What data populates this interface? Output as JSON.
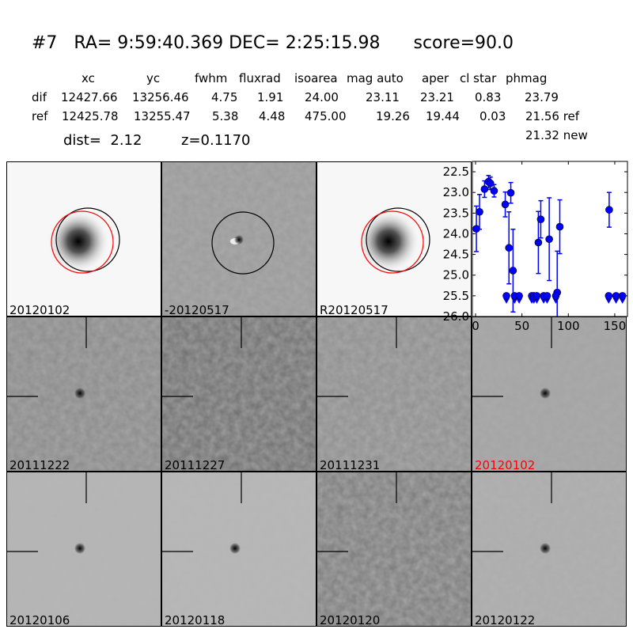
{
  "title": {
    "id": "#7",
    "ra": "RA= 9:59:40.369",
    "dec": "DEC= 2:25:15.98",
    "score": "score=90.0"
  },
  "table": {
    "columns": [
      "xc",
      "yc",
      "fwhm",
      "fluxrad",
      "isoarea",
      "mag auto",
      "aper",
      "cl star",
      "phmag"
    ],
    "rows": [
      {
        "label": "dif",
        "values": [
          "12427.66",
          "13256.46",
          "4.75",
          "1.91",
          "24.00",
          "23.11",
          "23.21",
          "0.83",
          "23.79"
        ]
      },
      {
        "label": "ref",
        "values": [
          "12425.78",
          "13255.47",
          "5.38",
          "4.48",
          "475.00",
          "19.26",
          "19.44",
          "0.03",
          "21.56 ref"
        ]
      }
    ],
    "extra": "21.32 new"
  },
  "dist": "dist=  2.12",
  "z": "z=0.1170",
  "top_panels": [
    {
      "label": "20120102",
      "kind": "image"
    },
    {
      "label": "-20120517",
      "kind": "difference"
    },
    {
      "label": "R20120517",
      "kind": "reference"
    }
  ],
  "epoch_panels": [
    {
      "label": "20111222",
      "highlight": false
    },
    {
      "label": "20111227",
      "highlight": false
    },
    {
      "label": "20111231",
      "highlight": false
    },
    {
      "label": "20120102",
      "highlight": true
    },
    {
      "label": "20120106",
      "highlight": false
    },
    {
      "label": "20120118",
      "highlight": false
    },
    {
      "label": "20120120",
      "highlight": false
    },
    {
      "label": "20120122",
      "highlight": false
    }
  ],
  "colors": {
    "highlight": "#ff0000",
    "points": "#0000ff",
    "circle_red": "#ff0000",
    "circle_black": "#000000"
  },
  "chart_data": {
    "type": "scatter",
    "xlim": [
      -3.4,
      163.7
    ],
    "ylim": [
      26.0,
      22.25
    ],
    "y_inverted": true,
    "xticks": [
      0,
      50,
      100,
      150
    ],
    "yticks": [
      "22.5",
      "23.0",
      "23.5",
      "24.0",
      "24.5",
      "25.0",
      "25.5",
      "26.0"
    ],
    "grid": false,
    "detections": [
      {
        "x": 0.9,
        "y": 23.88,
        "err": 0.55
      },
      {
        "x": 4.3,
        "y": 23.47,
        "err": 0.42
      },
      {
        "x": 9.7,
        "y": 22.92,
        "err": 0.2
      },
      {
        "x": 14.0,
        "y": 22.74,
        "err": 0.15
      },
      {
        "x": 16.0,
        "y": 22.78,
        "err": 0.15
      },
      {
        "x": 20.0,
        "y": 22.96,
        "err": 0.15
      },
      {
        "x": 32.0,
        "y": 23.29,
        "err": 0.3
      },
      {
        "x": 36.0,
        "y": 24.34,
        "err": 0.87
      },
      {
        "x": 38.0,
        "y": 23.01,
        "err": 0.25
      },
      {
        "x": 40.4,
        "y": 24.89,
        "err": 1.0
      },
      {
        "x": 67.7,
        "y": 24.21,
        "err": 0.75
      },
      {
        "x": 70.3,
        "y": 23.65,
        "err": 0.45
      },
      {
        "x": 79.4,
        "y": 24.13,
        "err": 1.0
      },
      {
        "x": 88.0,
        "y": 25.42,
        "err": 1.0
      },
      {
        "x": 90.8,
        "y": 23.83,
        "err": 0.65
      },
      {
        "x": 144.0,
        "y": 23.42,
        "err": 0.42
      }
    ],
    "upper_limits": {
      "y": 25.5,
      "x": [
        33.3,
        42.1,
        47.0,
        60.6,
        62.9,
        66.0,
        73.4,
        77.1,
        86.5,
        143.5,
        151.4,
        158.3
      ]
    }
  }
}
